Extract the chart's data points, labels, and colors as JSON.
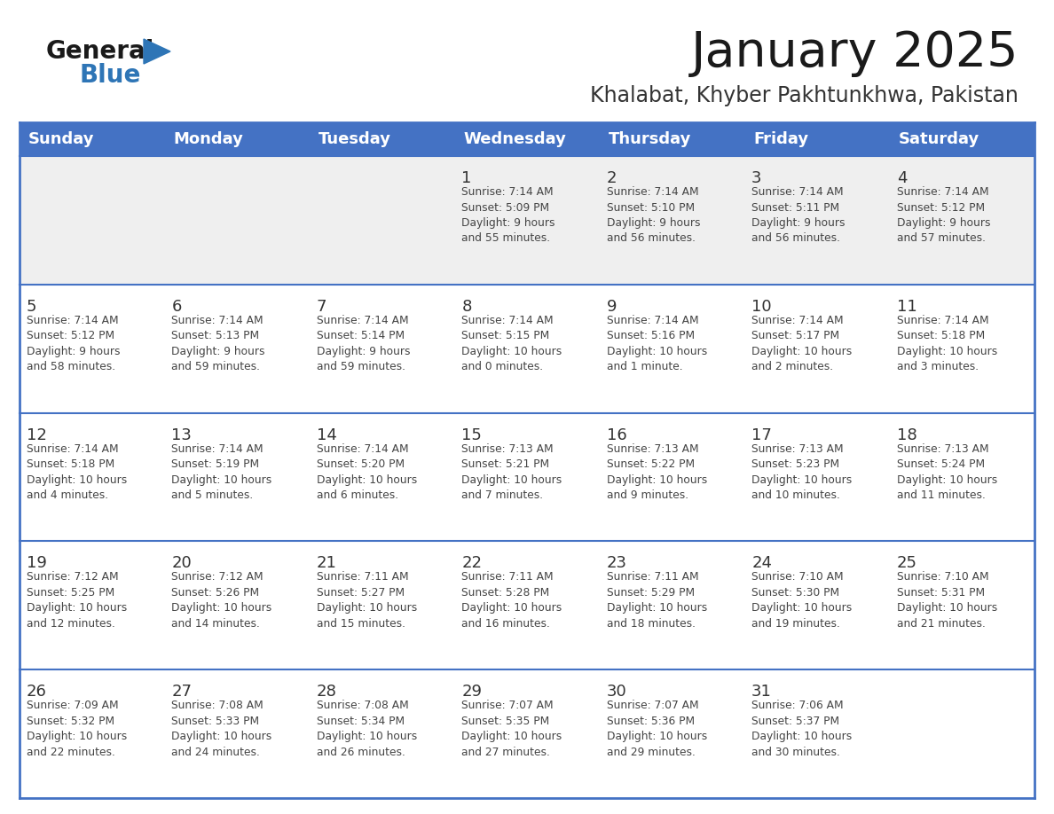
{
  "title": "January 2025",
  "subtitle": "Khalabat, Khyber Pakhtunkhwa, Pakistan",
  "days_of_week": [
    "Sunday",
    "Monday",
    "Tuesday",
    "Wednesday",
    "Thursday",
    "Friday",
    "Saturday"
  ],
  "header_bg": "#4472C4",
  "header_text_color": "#FFFFFF",
  "cell_bg_white": "#FFFFFF",
  "cell_bg_gray": "#EFEFEF",
  "row_line_color": "#4472C4",
  "text_color_body": "#444444",
  "day_num_color": "#333333",
  "logo_general_color": "#1a1a1a",
  "logo_blue_color": "#2E75B6",
  "logo_triangle_color": "#2E75B6",
  "calendar_data": [
    [
      {
        "day": null,
        "sunrise": null,
        "sunset": null,
        "daylight": null
      },
      {
        "day": null,
        "sunrise": null,
        "sunset": null,
        "daylight": null
      },
      {
        "day": null,
        "sunrise": null,
        "sunset": null,
        "daylight": null
      },
      {
        "day": 1,
        "sunrise": "7:14 AM",
        "sunset": "5:09 PM",
        "daylight": "9 hours\nand 55 minutes."
      },
      {
        "day": 2,
        "sunrise": "7:14 AM",
        "sunset": "5:10 PM",
        "daylight": "9 hours\nand 56 minutes."
      },
      {
        "day": 3,
        "sunrise": "7:14 AM",
        "sunset": "5:11 PM",
        "daylight": "9 hours\nand 56 minutes."
      },
      {
        "day": 4,
        "sunrise": "7:14 AM",
        "sunset": "5:12 PM",
        "daylight": "9 hours\nand 57 minutes."
      }
    ],
    [
      {
        "day": 5,
        "sunrise": "7:14 AM",
        "sunset": "5:12 PM",
        "daylight": "9 hours\nand 58 minutes."
      },
      {
        "day": 6,
        "sunrise": "7:14 AM",
        "sunset": "5:13 PM",
        "daylight": "9 hours\nand 59 minutes."
      },
      {
        "day": 7,
        "sunrise": "7:14 AM",
        "sunset": "5:14 PM",
        "daylight": "9 hours\nand 59 minutes."
      },
      {
        "day": 8,
        "sunrise": "7:14 AM",
        "sunset": "5:15 PM",
        "daylight": "10 hours\nand 0 minutes."
      },
      {
        "day": 9,
        "sunrise": "7:14 AM",
        "sunset": "5:16 PM",
        "daylight": "10 hours\nand 1 minute."
      },
      {
        "day": 10,
        "sunrise": "7:14 AM",
        "sunset": "5:17 PM",
        "daylight": "10 hours\nand 2 minutes."
      },
      {
        "day": 11,
        "sunrise": "7:14 AM",
        "sunset": "5:18 PM",
        "daylight": "10 hours\nand 3 minutes."
      }
    ],
    [
      {
        "day": 12,
        "sunrise": "7:14 AM",
        "sunset": "5:18 PM",
        "daylight": "10 hours\nand 4 minutes."
      },
      {
        "day": 13,
        "sunrise": "7:14 AM",
        "sunset": "5:19 PM",
        "daylight": "10 hours\nand 5 minutes."
      },
      {
        "day": 14,
        "sunrise": "7:14 AM",
        "sunset": "5:20 PM",
        "daylight": "10 hours\nand 6 minutes."
      },
      {
        "day": 15,
        "sunrise": "7:13 AM",
        "sunset": "5:21 PM",
        "daylight": "10 hours\nand 7 minutes."
      },
      {
        "day": 16,
        "sunrise": "7:13 AM",
        "sunset": "5:22 PM",
        "daylight": "10 hours\nand 9 minutes."
      },
      {
        "day": 17,
        "sunrise": "7:13 AM",
        "sunset": "5:23 PM",
        "daylight": "10 hours\nand 10 minutes."
      },
      {
        "day": 18,
        "sunrise": "7:13 AM",
        "sunset": "5:24 PM",
        "daylight": "10 hours\nand 11 minutes."
      }
    ],
    [
      {
        "day": 19,
        "sunrise": "7:12 AM",
        "sunset": "5:25 PM",
        "daylight": "10 hours\nand 12 minutes."
      },
      {
        "day": 20,
        "sunrise": "7:12 AM",
        "sunset": "5:26 PM",
        "daylight": "10 hours\nand 14 minutes."
      },
      {
        "day": 21,
        "sunrise": "7:11 AM",
        "sunset": "5:27 PM",
        "daylight": "10 hours\nand 15 minutes."
      },
      {
        "day": 22,
        "sunrise": "7:11 AM",
        "sunset": "5:28 PM",
        "daylight": "10 hours\nand 16 minutes."
      },
      {
        "day": 23,
        "sunrise": "7:11 AM",
        "sunset": "5:29 PM",
        "daylight": "10 hours\nand 18 minutes."
      },
      {
        "day": 24,
        "sunrise": "7:10 AM",
        "sunset": "5:30 PM",
        "daylight": "10 hours\nand 19 minutes."
      },
      {
        "day": 25,
        "sunrise": "7:10 AM",
        "sunset": "5:31 PM",
        "daylight": "10 hours\nand 21 minutes."
      }
    ],
    [
      {
        "day": 26,
        "sunrise": "7:09 AM",
        "sunset": "5:32 PM",
        "daylight": "10 hours\nand 22 minutes."
      },
      {
        "day": 27,
        "sunrise": "7:08 AM",
        "sunset": "5:33 PM",
        "daylight": "10 hours\nand 24 minutes."
      },
      {
        "day": 28,
        "sunrise": "7:08 AM",
        "sunset": "5:34 PM",
        "daylight": "10 hours\nand 26 minutes."
      },
      {
        "day": 29,
        "sunrise": "7:07 AM",
        "sunset": "5:35 PM",
        "daylight": "10 hours\nand 27 minutes."
      },
      {
        "day": 30,
        "sunrise": "7:07 AM",
        "sunset": "5:36 PM",
        "daylight": "10 hours\nand 29 minutes."
      },
      {
        "day": 31,
        "sunrise": "7:06 AM",
        "sunset": "5:37 PM",
        "daylight": "10 hours\nand 30 minutes."
      },
      {
        "day": null,
        "sunrise": null,
        "sunset": null,
        "daylight": null
      }
    ]
  ]
}
